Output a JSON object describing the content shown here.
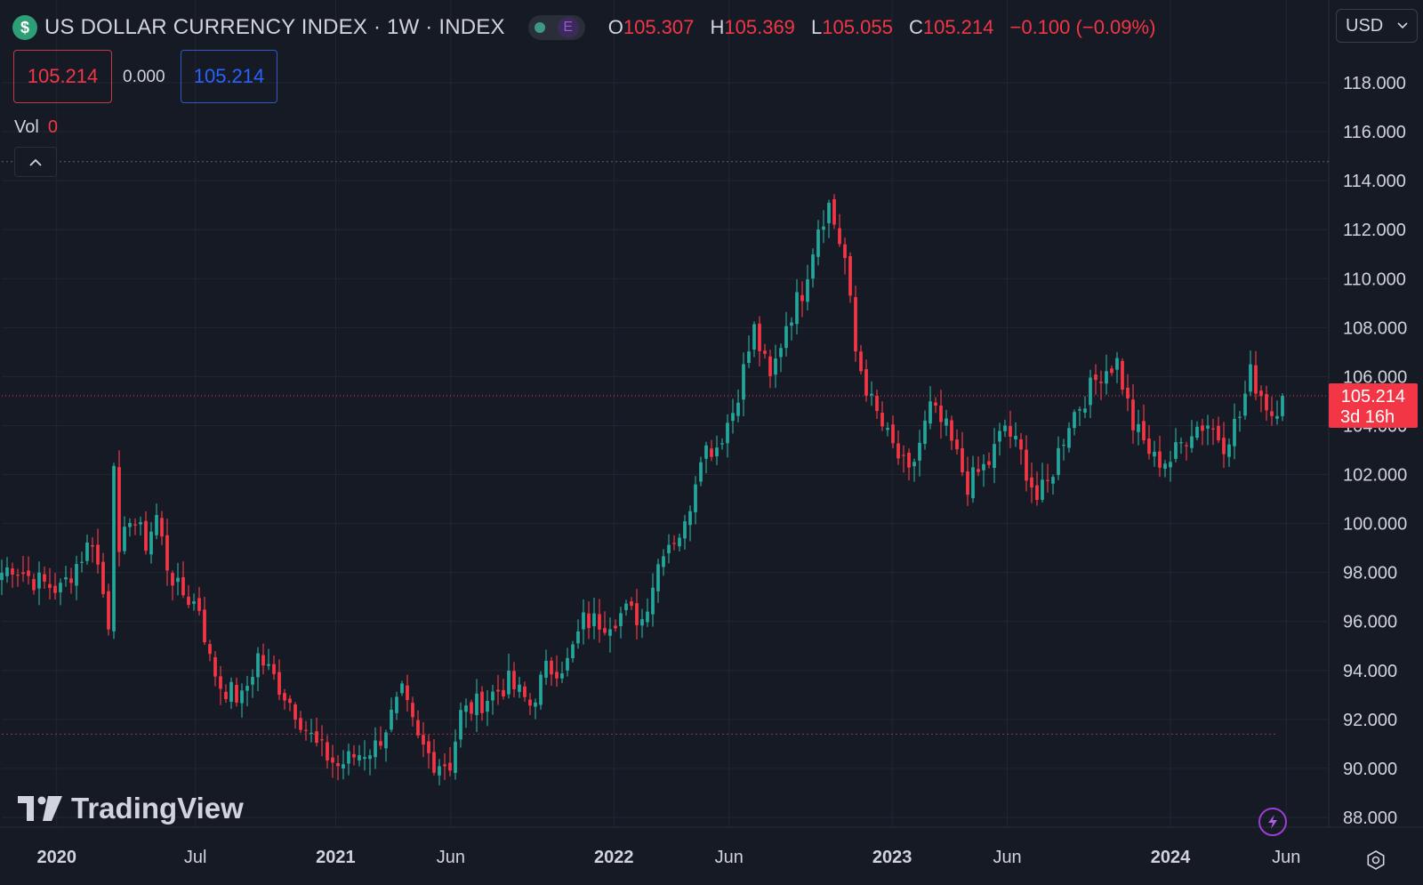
{
  "header": {
    "symbol_icon": "$",
    "title": "US DOLLAR CURRENCY INDEX · 1W · INDEX",
    "pill_label": "E",
    "ohlc": {
      "o_label": "O",
      "o_value": "105.307",
      "h_label": "H",
      "h_value": "105.369",
      "l_label": "L",
      "l_value": "105.055",
      "c_label": "C",
      "c_value": "105.214",
      "change": "−0.100 (−0.09%)"
    },
    "currency": "USD"
  },
  "trade": {
    "sell_price": "105.214",
    "spread": "0.000",
    "buy_price": "105.214"
  },
  "volume": {
    "label": "Vol",
    "value": "0"
  },
  "brand": {
    "name": "TradingView",
    "logo_text": "17"
  },
  "price_tag": {
    "price": "105.214",
    "countdown": "3d 16h"
  },
  "icons": {
    "symbol": "dollar-icon",
    "collapse": "chevron-up-icon",
    "currency_dropdown": "chevron-down-icon",
    "snapshot": "flash-icon",
    "settings": "gear-icon"
  },
  "colors": {
    "background": "#161a25",
    "up": "#26a69a",
    "down": "#f23645",
    "grid": "#232632",
    "text": "#d1d4dc"
  },
  "chart_data": {
    "type": "candlestick",
    "interval": "1W",
    "y_axis_side": "right",
    "ylim": [
      87.0,
      120.0
    ],
    "y_ticks": [
      "88.000",
      "90.000",
      "92.000",
      "94.000",
      "96.000",
      "98.000",
      "100.000",
      "102.000",
      "104.000",
      "106.000",
      "108.000",
      "110.000",
      "112.000",
      "114.000",
      "116.000",
      "118.000"
    ],
    "x_ticks": [
      {
        "label": "2020",
        "date": "2020-01-01"
      },
      {
        "label": "Jul",
        "date": "2020-07-01"
      },
      {
        "label": "2021",
        "date": "2021-01-01"
      },
      {
        "label": "Jun",
        "date": "2021-06-01"
      },
      {
        "label": "2022",
        "date": "2022-01-01"
      },
      {
        "label": "Jun",
        "date": "2022-06-01"
      },
      {
        "label": "2023",
        "date": "2023-01-01"
      },
      {
        "label": "Jun",
        "date": "2023-06-01"
      },
      {
        "label": "2024",
        "date": "2024-01-01"
      },
      {
        "label": "Jun",
        "date": "2024-06-01"
      }
    ],
    "x_start": "2019-10-21",
    "x_end": "2024-06-17",
    "last_price": 105.214,
    "last_price_line": 105.214,
    "year_high_line": 114.778,
    "low_line": 91.4,
    "closes": [
      {
        "date": "2019-10-21",
        "close": 98.0
      },
      {
        "date": "2019-11-04",
        "close": 98.3
      },
      {
        "date": "2019-12-02",
        "close": 97.7
      },
      {
        "date": "2020-01-06",
        "close": 97.3
      },
      {
        "date": "2020-02-17",
        "close": 99.4
      },
      {
        "date": "2020-03-09",
        "close": 96.0
      },
      {
        "date": "2020-03-16",
        "close": 102.8
      },
      {
        "date": "2020-03-23",
        "close": 98.4
      },
      {
        "date": "2020-04-06",
        "close": 100.4
      },
      {
        "date": "2020-04-27",
        "close": 99.2
      },
      {
        "date": "2020-05-11",
        "close": 100.3
      },
      {
        "date": "2020-05-25",
        "close": 98.3
      },
      {
        "date": "2020-06-08",
        "close": 97.3
      },
      {
        "date": "2020-07-06",
        "close": 96.6
      },
      {
        "date": "2020-07-20",
        "close": 94.4
      },
      {
        "date": "2020-08-03",
        "close": 93.4
      },
      {
        "date": "2020-08-31",
        "close": 92.8
      },
      {
        "date": "2020-09-21",
        "close": 94.6
      },
      {
        "date": "2020-10-12",
        "close": 93.7
      },
      {
        "date": "2020-11-09",
        "close": 92.4
      },
      {
        "date": "2020-12-07",
        "close": 90.9
      },
      {
        "date": "2021-01-04",
        "close": 90.1
      },
      {
        "date": "2021-01-25",
        "close": 90.5
      },
      {
        "date": "2021-02-22",
        "close": 90.9
      },
      {
        "date": "2021-03-08",
        "close": 91.7
      },
      {
        "date": "2021-03-29",
        "close": 93.0
      },
      {
        "date": "2021-04-19",
        "close": 91.1
      },
      {
        "date": "2021-05-10",
        "close": 90.3
      },
      {
        "date": "2021-05-31",
        "close": 90.2
      },
      {
        "date": "2021-06-14",
        "close": 92.2
      },
      {
        "date": "2021-07-05",
        "close": 92.6
      },
      {
        "date": "2021-08-16",
        "close": 93.5
      },
      {
        "date": "2021-09-13",
        "close": 92.6
      },
      {
        "date": "2021-10-04",
        "close": 94.0
      },
      {
        "date": "2021-11-01",
        "close": 94.3
      },
      {
        "date": "2021-11-22",
        "close": 96.0
      },
      {
        "date": "2021-12-20",
        "close": 96.0
      },
      {
        "date": "2022-01-17",
        "close": 96.4
      },
      {
        "date": "2022-02-07",
        "close": 96.1
      },
      {
        "date": "2022-03-07",
        "close": 99.1
      },
      {
        "date": "2022-04-04",
        "close": 99.8
      },
      {
        "date": "2022-04-25",
        "close": 103.0
      },
      {
        "date": "2022-05-16",
        "close": 103.2
      },
      {
        "date": "2022-06-06",
        "close": 104.6
      },
      {
        "date": "2022-07-04",
        "close": 107.9
      },
      {
        "date": "2022-07-25",
        "close": 105.8
      },
      {
        "date": "2022-08-15",
        "close": 108.2
      },
      {
        "date": "2022-09-05",
        "close": 109.5
      },
      {
        "date": "2022-09-26",
        "close": 112.2
      },
      {
        "date": "2022-10-10",
        "close": 113.0
      },
      {
        "date": "2022-10-31",
        "close": 110.8
      },
      {
        "date": "2022-11-14",
        "close": 107.0
      },
      {
        "date": "2022-12-05",
        "close": 104.9
      },
      {
        "date": "2022-12-26",
        "close": 103.5
      },
      {
        "date": "2023-01-23",
        "close": 101.9
      },
      {
        "date": "2023-02-20",
        "close": 104.7
      },
      {
        "date": "2023-03-13",
        "close": 103.8
      },
      {
        "date": "2023-04-10",
        "close": 101.6
      },
      {
        "date": "2023-05-08",
        "close": 102.5
      },
      {
        "date": "2023-05-29",
        "close": 104.0
      },
      {
        "date": "2023-06-19",
        "close": 102.8
      },
      {
        "date": "2023-07-10",
        "close": 101.0
      },
      {
        "date": "2023-07-24",
        "close": 101.6
      },
      {
        "date": "2023-08-21",
        "close": 104.2
      },
      {
        "date": "2023-09-18",
        "close": 105.5
      },
      {
        "date": "2023-10-02",
        "close": 106.2
      },
      {
        "date": "2023-10-23",
        "close": 106.6
      },
      {
        "date": "2023-11-13",
        "close": 104.0
      },
      {
        "date": "2023-12-11",
        "close": 102.6
      },
      {
        "date": "2024-01-01",
        "close": 102.6
      },
      {
        "date": "2024-01-29",
        "close": 103.9
      },
      {
        "date": "2024-02-19",
        "close": 104.1
      },
      {
        "date": "2024-03-11",
        "close": 103.3
      },
      {
        "date": "2024-04-01",
        "close": 104.4
      },
      {
        "date": "2024-04-15",
        "close": 106.1
      },
      {
        "date": "2024-05-13",
        "close": 104.5
      },
      {
        "date": "2024-05-27",
        "close": 105.214
      }
    ]
  }
}
